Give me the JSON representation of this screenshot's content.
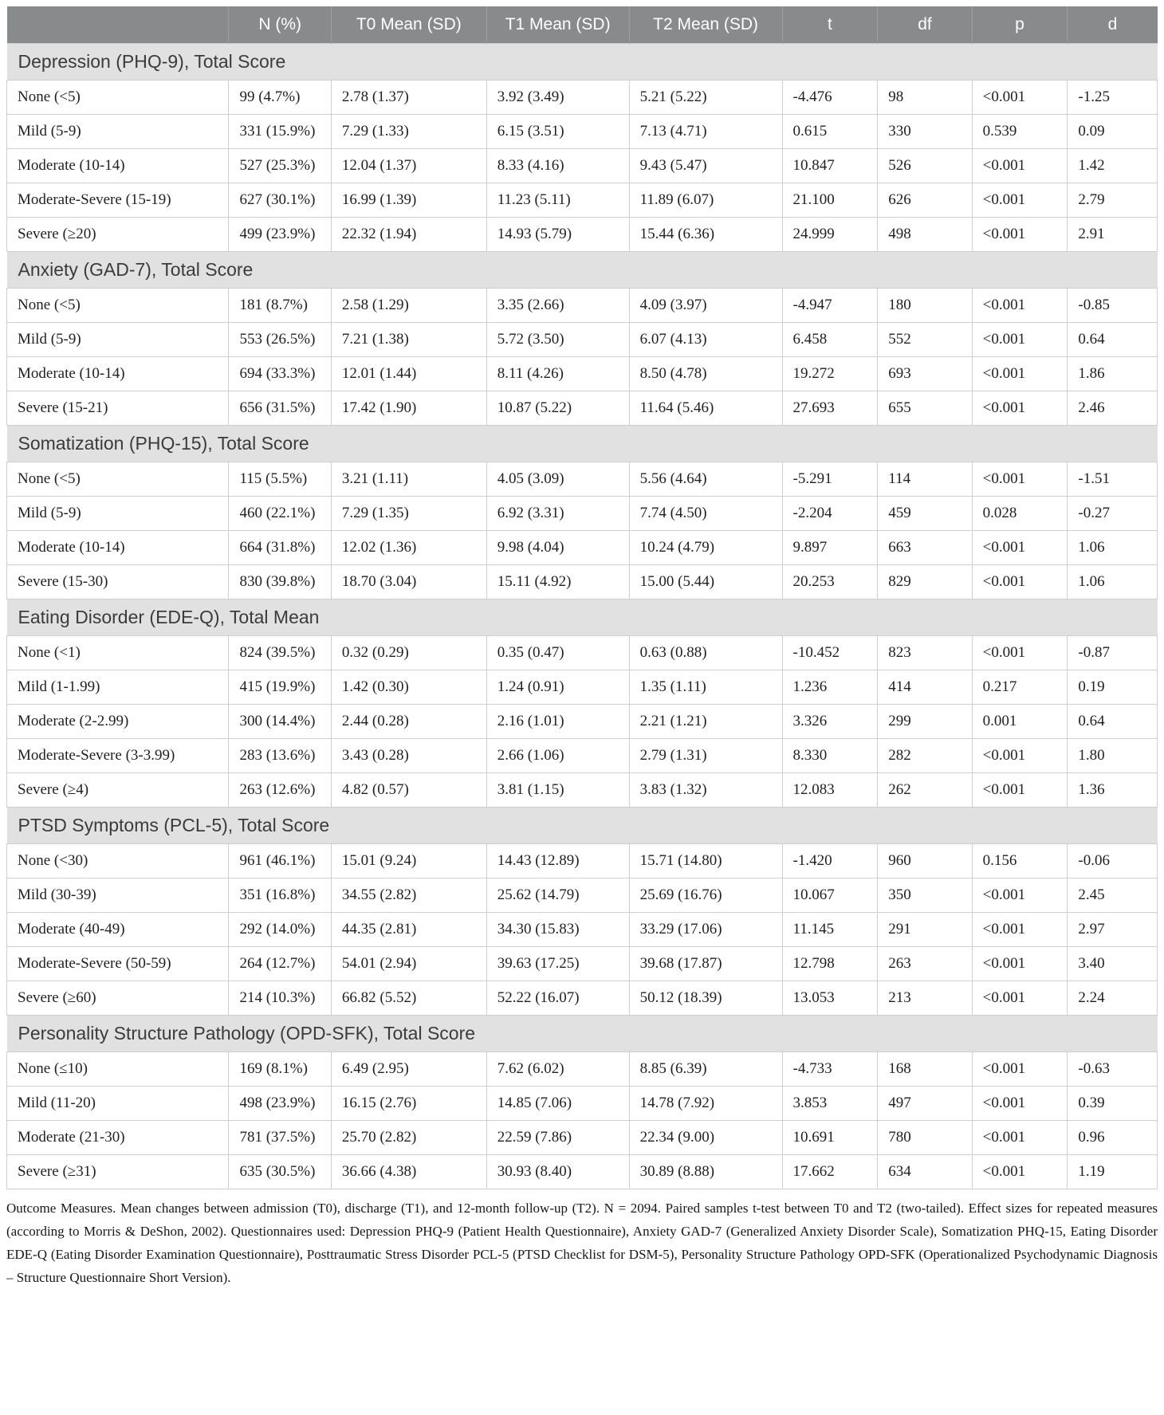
{
  "colors": {
    "header_bg": "#898a8c",
    "header_fg": "#ffffff",
    "section_bg": "#e1e1e1",
    "grid": "#cfcfcf"
  },
  "table": {
    "columns": [
      {
        "key": "severity",
        "label": ""
      },
      {
        "key": "n-pct",
        "label": "N (%)"
      },
      {
        "key": "t0-mean-sd",
        "label": "T0 Mean (SD)"
      },
      {
        "key": "t1-mean-sd",
        "label": "T1 Mean (SD)"
      },
      {
        "key": "t2-mean-sd",
        "label": "T2 Mean (SD)"
      },
      {
        "key": "t",
        "label": "t"
      },
      {
        "key": "df",
        "label": "df"
      },
      {
        "key": "p",
        "label": "p"
      },
      {
        "key": "d",
        "label": "d"
      }
    ],
    "col_widths": [
      "19.3%",
      "8.9%",
      "13.5%",
      "12.4%",
      "13.3%",
      "8.3%",
      "8.2%",
      "8.3%",
      "7.8%"
    ],
    "sections": [
      {
        "title": "Depression (PHQ-9), Total Score",
        "rows": [
          [
            "None (<5)",
            "99 (4.7%)",
            "2.78 (1.37)",
            "3.92 (3.49)",
            "5.21 (5.22)",
            "-4.476",
            "98",
            "<0.001",
            "-1.25"
          ],
          [
            "Mild (5-9)",
            "331 (15.9%)",
            "7.29 (1.33)",
            "6.15 (3.51)",
            "7.13 (4.71)",
            "0.615",
            "330",
            "0.539",
            "0.09"
          ],
          [
            "Moderate (10-14)",
            "527 (25.3%)",
            "12.04 (1.37)",
            "8.33 (4.16)",
            "9.43 (5.47)",
            "10.847",
            "526",
            "<0.001",
            "1.42"
          ],
          [
            "Moderate-Severe (15-19)",
            "627 (30.1%)",
            "16.99 (1.39)",
            "11.23 (5.11)",
            "11.89 (6.07)",
            "21.100",
            "626",
            "<0.001",
            "2.79"
          ],
          [
            "Severe (≥20)",
            "499 (23.9%)",
            "22.32 (1.94)",
            "14.93 (5.79)",
            "15.44 (6.36)",
            "24.999",
            "498",
            "<0.001",
            "2.91"
          ]
        ]
      },
      {
        "title": "Anxiety (GAD-7), Total Score",
        "rows": [
          [
            "None (<5)",
            "181 (8.7%)",
            "2.58 (1.29)",
            "3.35 (2.66)",
            "4.09 (3.97)",
            "-4.947",
            "180",
            "<0.001",
            "-0.85"
          ],
          [
            "Mild (5-9)",
            "553 (26.5%)",
            "7.21 (1.38)",
            "5.72 (3.50)",
            "6.07 (4.13)",
            "6.458",
            "552",
            "<0.001",
            "0.64"
          ],
          [
            "Moderate (10-14)",
            "694 (33.3%)",
            "12.01 (1.44)",
            "8.11 (4.26)",
            "8.50 (4.78)",
            "19.272",
            "693",
            "<0.001",
            "1.86"
          ],
          [
            "Severe (15-21)",
            "656 (31.5%)",
            "17.42 (1.90)",
            "10.87 (5.22)",
            "11.64 (5.46)",
            "27.693",
            "655",
            "<0.001",
            "2.46"
          ]
        ]
      },
      {
        "title": "Somatization (PHQ-15), Total Score",
        "rows": [
          [
            "None (<5)",
            "115 (5.5%)",
            "3.21 (1.11)",
            "4.05 (3.09)",
            "5.56 (4.64)",
            "-5.291",
            "114",
            "<0.001",
            "-1.51"
          ],
          [
            "Mild (5-9)",
            "460 (22.1%)",
            "7.29 (1.35)",
            "6.92 (3.31)",
            "7.74 (4.50)",
            "-2.204",
            "459",
            "0.028",
            "-0.27"
          ],
          [
            "Moderate (10-14)",
            "664 (31.8%)",
            "12.02 (1.36)",
            "9.98 (4.04)",
            "10.24 (4.79)",
            "9.897",
            "663",
            "<0.001",
            "1.06"
          ],
          [
            "Severe (15-30)",
            "830 (39.8%)",
            "18.70 (3.04)",
            "15.11 (4.92)",
            "15.00 (5.44)",
            "20.253",
            "829",
            "<0.001",
            "1.06"
          ]
        ]
      },
      {
        "title": "Eating Disorder (EDE-Q), Total Mean",
        "rows": [
          [
            "None (<1)",
            "824 (39.5%)",
            "0.32 (0.29)",
            "0.35 (0.47)",
            "0.63 (0.88)",
            "-10.452",
            "823",
            "<0.001",
            "-0.87"
          ],
          [
            "Mild (1-1.99)",
            "415 (19.9%)",
            "1.42 (0.30)",
            "1.24 (0.91)",
            "1.35 (1.11)",
            "1.236",
            "414",
            "0.217",
            "0.19"
          ],
          [
            "Moderate (2-2.99)",
            "300 (14.4%)",
            "2.44 (0.28)",
            "2.16 (1.01)",
            "2.21 (1.21)",
            "3.326",
            "299",
            "0.001",
            "0.64"
          ],
          [
            "Moderate-Severe (3-3.99)",
            "283 (13.6%)",
            "3.43 (0.28)",
            "2.66 (1.06)",
            "2.79 (1.31)",
            "8.330",
            "282",
            "<0.001",
            "1.80"
          ],
          [
            "Severe (≥4)",
            "263 (12.6%)",
            "4.82 (0.57)",
            "3.81 (1.15)",
            "3.83 (1.32)",
            "12.083",
            "262",
            "<0.001",
            "1.36"
          ]
        ]
      },
      {
        "title": "PTSD Symptoms (PCL-5), Total Score",
        "rows": [
          [
            "None (<30)",
            "961 (46.1%)",
            "15.01 (9.24)",
            "14.43 (12.89)",
            "15.71 (14.80)",
            "-1.420",
            "960",
            "0.156",
            "-0.06"
          ],
          [
            "Mild (30-39)",
            "351 (16.8%)",
            "34.55 (2.82)",
            "25.62 (14.79)",
            "25.69 (16.76)",
            "10.067",
            "350",
            "<0.001",
            "2.45"
          ],
          [
            "Moderate (40-49)",
            "292 (14.0%)",
            "44.35 (2.81)",
            "34.30 (15.83)",
            "33.29 (17.06)",
            "11.145",
            "291",
            "<0.001",
            "2.97"
          ],
          [
            "Moderate-Severe (50-59)",
            "264 (12.7%)",
            "54.01 (2.94)",
            "39.63 (17.25)",
            "39.68 (17.87)",
            "12.798",
            "263",
            "<0.001",
            "3.40"
          ],
          [
            "Severe (≥60)",
            "214 (10.3%)",
            "66.82 (5.52)",
            "52.22 (16.07)",
            "50.12 (18.39)",
            "13.053",
            "213",
            "<0.001",
            "2.24"
          ]
        ]
      },
      {
        "title": "Personality Structure Pathology (OPD-SFK), Total Score",
        "rows": [
          [
            "None (≤10)",
            "169 (8.1%)",
            "6.49 (2.95)",
            "7.62 (6.02)",
            "8.85 (6.39)",
            "-4.733",
            "168",
            "<0.001",
            "-0.63"
          ],
          [
            "Mild (11-20)",
            "498 (23.9%)",
            "16.15 (2.76)",
            "14.85 (7.06)",
            "14.78 (7.92)",
            "3.853",
            "497",
            "<0.001",
            "0.39"
          ],
          [
            "Moderate (21-30)",
            "781 (37.5%)",
            "25.70 (2.82)",
            "22.59 (7.86)",
            "22.34 (9.00)",
            "10.691",
            "780",
            "<0.001",
            "0.96"
          ],
          [
            "Severe (≥31)",
            "635 (30.5%)",
            "36.66 (4.38)",
            "30.93 (8.40)",
            "30.89 (8.88)",
            "17.662",
            "634",
            "<0.001",
            "1.19"
          ]
        ]
      }
    ]
  },
  "footnote": {
    "text": "Outcome Measures. Mean changes between admission (T0), discharge (T1), and 12-month follow-up (T2). N = 2094. Paired samples t-test between T0 and T2 (two-tailed). Effect sizes for repeated measures (according to Morris & DeShon, 2002). Questionnaires used: Depression PHQ-9 (Patient Health Questionnaire), Anxiety GAD-7 (Generalized Anxiety Disorder Scale), Somatization PHQ-15, Eating Disorder EDE-Q (Eating Disorder Examination Questionnaire), Posttraumatic Stress Disorder PCL-5 (PTSD Checklist for DSM-5), Personality Structure Pathology OPD-SFK (Operationalized Psychodynamic Diagnosis – Structure Questionnaire Short Version)."
  }
}
